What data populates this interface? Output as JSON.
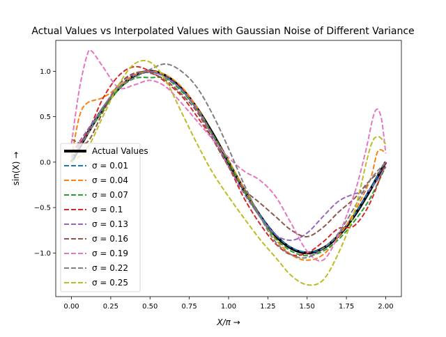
{
  "chart_data": {
    "type": "line",
    "title": "Actual Values vs Interpolated Values with Gaussian Noise of Different Variance",
    "xlabel": "X/π →",
    "ylabel": "sin(X) →",
    "xlim": [
      -0.1,
      2.1
    ],
    "ylim": [
      -1.48,
      1.34
    ],
    "xticks": [
      "0.00",
      "0.25",
      "0.50",
      "0.75",
      "1.00",
      "1.25",
      "1.50",
      "1.75",
      "2.00"
    ],
    "xtick_values": [
      0,
      0.25,
      0.5,
      0.75,
      1.0,
      1.25,
      1.5,
      1.75,
      2.0
    ],
    "yticks": [
      "−1.0",
      "−0.5",
      "0.0",
      "0.5",
      "1.0"
    ],
    "ytick_values": [
      -1.0,
      -0.5,
      0.0,
      0.5,
      1.0
    ],
    "grid": false,
    "legend_position": "lower-left",
    "series": [
      {
        "name": "Actual Values",
        "color": "#000000",
        "dashed": false,
        "x": [
          0,
          0.1,
          0.2,
          0.3,
          0.4,
          0.5,
          0.6,
          0.7,
          0.8,
          0.9,
          1.0,
          1.1,
          1.2,
          1.3,
          1.4,
          1.5,
          1.6,
          1.7,
          1.8,
          1.9,
          2.0
        ],
        "y": [
          0,
          0.31,
          0.59,
          0.81,
          0.95,
          1.0,
          0.95,
          0.81,
          0.59,
          0.31,
          0,
          -0.31,
          -0.59,
          -0.81,
          -0.95,
          -1.0,
          -0.95,
          -0.81,
          -0.59,
          -0.31,
          0
        ]
      },
      {
        "name": "σ = 0.01",
        "color": "#1f77b4",
        "dashed": true,
        "x": [
          0,
          0.1,
          0.2,
          0.3,
          0.4,
          0.5,
          0.6,
          0.7,
          0.8,
          0.9,
          1.0,
          1.1,
          1.2,
          1.3,
          1.4,
          1.5,
          1.6,
          1.7,
          1.8,
          1.9,
          2.0
        ],
        "y": [
          0.02,
          0.32,
          0.6,
          0.82,
          0.95,
          0.99,
          0.94,
          0.8,
          0.58,
          0.3,
          0.01,
          -0.3,
          -0.58,
          -0.8,
          -0.94,
          -0.99,
          -0.95,
          -0.8,
          -0.58,
          -0.3,
          0.01
        ]
      },
      {
        "name": "σ = 0.04",
        "color": "#ff7f0e",
        "dashed": true,
        "x": [
          0,
          0.05,
          0.1,
          0.2,
          0.3,
          0.4,
          0.5,
          0.6,
          0.7,
          0.8,
          0.9,
          1.0,
          1.1,
          1.2,
          1.3,
          1.4,
          1.5,
          1.6,
          1.7,
          1.8,
          1.9,
          1.95,
          2.0
        ],
        "y": [
          0.05,
          0.5,
          0.65,
          0.71,
          0.83,
          0.96,
          1.0,
          0.96,
          0.83,
          0.6,
          0.3,
          0.02,
          -0.3,
          -0.6,
          -0.85,
          -1.02,
          -1.08,
          -1.02,
          -0.82,
          -0.55,
          -0.2,
          0.12,
          0.1
        ]
      },
      {
        "name": "σ = 0.07",
        "color": "#2ca02c",
        "dashed": true,
        "x": [
          0,
          0.1,
          0.2,
          0.3,
          0.4,
          0.5,
          0.6,
          0.7,
          0.8,
          0.9,
          1.0,
          1.1,
          1.2,
          1.3,
          1.4,
          1.5,
          1.6,
          1.7,
          1.8,
          1.9,
          2.0
        ],
        "y": [
          0.05,
          0.3,
          0.57,
          0.8,
          0.92,
          0.93,
          0.92,
          0.78,
          0.58,
          0.3,
          0.0,
          -0.32,
          -0.6,
          -0.84,
          -0.98,
          -1.03,
          -0.98,
          -0.85,
          -0.65,
          -0.4,
          -0.05
        ]
      },
      {
        "name": "σ = 0.1",
        "color": "#d62728",
        "dashed": true,
        "x": [
          0,
          0.1,
          0.2,
          0.3,
          0.4,
          0.5,
          0.6,
          0.7,
          0.8,
          0.9,
          1.0,
          1.1,
          1.2,
          1.3,
          1.4,
          1.5,
          1.6,
          1.7,
          1.8,
          1.9,
          2.0
        ],
        "y": [
          0.1,
          0.32,
          0.7,
          0.95,
          1.05,
          1.0,
          0.88,
          0.73,
          0.5,
          0.25,
          -0.05,
          -0.4,
          -0.68,
          -0.9,
          -1.02,
          -1.0,
          -0.88,
          -0.73,
          -0.7,
          -0.45,
          0.0
        ]
      },
      {
        "name": "σ = 0.13",
        "color": "#9467bd",
        "dashed": true,
        "x": [
          0,
          0.1,
          0.2,
          0.3,
          0.4,
          0.5,
          0.6,
          0.7,
          0.8,
          0.9,
          1.0,
          1.1,
          1.2,
          1.3,
          1.4,
          1.5,
          1.6,
          1.7,
          1.8,
          1.9,
          2.0
        ],
        "y": [
          0.1,
          0.35,
          0.6,
          0.85,
          0.97,
          1.0,
          0.93,
          0.8,
          0.58,
          0.28,
          -0.04,
          -0.35,
          -0.6,
          -0.8,
          -0.86,
          -0.78,
          -0.6,
          -0.43,
          -0.35,
          -0.3,
          -0.05
        ]
      },
      {
        "name": "σ = 0.16",
        "color": "#8c564b",
        "dashed": true,
        "x": [
          0,
          0.1,
          0.2,
          0.3,
          0.4,
          0.5,
          0.6,
          0.7,
          0.8,
          0.9,
          1.0,
          1.1,
          1.2,
          1.3,
          1.4,
          1.5,
          1.6,
          1.7,
          1.8,
          1.9,
          2.0
        ],
        "y": [
          0.25,
          0.22,
          0.55,
          0.85,
          0.98,
          0.98,
          0.9,
          0.75,
          0.55,
          0.25,
          -0.05,
          -0.3,
          -0.45,
          -0.6,
          -0.75,
          -0.82,
          -0.72,
          -0.55,
          -0.4,
          -0.2,
          -0.05
        ]
      },
      {
        "name": "σ = 0.19",
        "color": "#e377c2",
        "dashed": true,
        "x": [
          0,
          0.05,
          0.1,
          0.13,
          0.2,
          0.3,
          0.4,
          0.5,
          0.6,
          0.7,
          0.8,
          0.9,
          1.0,
          1.1,
          1.2,
          1.3,
          1.4,
          1.5,
          1.6,
          1.7,
          1.8,
          1.87,
          1.93,
          1.97,
          2.0
        ],
        "y": [
          0.2,
          0.8,
          1.18,
          1.22,
          1.05,
          0.82,
          0.85,
          0.9,
          0.83,
          0.65,
          0.45,
          0.25,
          0.05,
          -0.1,
          -0.2,
          -0.38,
          -0.68,
          -0.98,
          -1.08,
          -0.8,
          -0.35,
          0.1,
          0.55,
          0.5,
          0.1
        ]
      },
      {
        "name": "σ = 0.22",
        "color": "#7f7f7f",
        "dashed": true,
        "x": [
          0,
          0.1,
          0.2,
          0.3,
          0.4,
          0.5,
          0.6,
          0.7,
          0.8,
          0.9,
          1.0,
          1.1,
          1.2,
          1.3,
          1.4,
          1.5,
          1.6,
          1.7,
          1.8,
          1.9,
          2.0
        ],
        "y": [
          0.05,
          0.3,
          0.6,
          0.82,
          0.93,
          1.02,
          1.08,
          1.0,
          0.82,
          0.52,
          0.15,
          -0.25,
          -0.6,
          -0.88,
          -1.02,
          -1.05,
          -0.95,
          -0.78,
          -0.5,
          -0.2,
          0.0
        ]
      },
      {
        "name": "σ = 0.25",
        "color": "#bcbd22",
        "dashed": true,
        "x": [
          0,
          0.1,
          0.2,
          0.3,
          0.4,
          0.5,
          0.6,
          0.7,
          0.8,
          0.9,
          1.0,
          1.1,
          1.2,
          1.3,
          1.4,
          1.5,
          1.6,
          1.7,
          1.8,
          1.9,
          1.95,
          2.0
        ],
        "y": [
          0,
          0.15,
          0.5,
          0.85,
          1.08,
          1.1,
          0.9,
          0.55,
          0.2,
          -0.12,
          -0.38,
          -0.62,
          -0.85,
          -1.05,
          -1.25,
          -1.35,
          -1.3,
          -1.0,
          -0.55,
          0.15,
          0.28,
          0.2
        ]
      }
    ]
  }
}
